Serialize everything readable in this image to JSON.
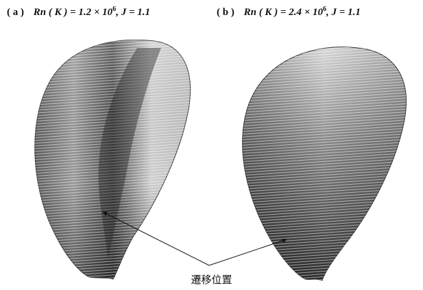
{
  "panel_a": {
    "label": "( a )",
    "formula": "Rn ( K ) = 1.2 × 10",
    "exponent": "6",
    "suffix": ",   J = 1.1"
  },
  "panel_b": {
    "label": "( b )",
    "formula": "Rn ( K ) = 2.4 × 10",
    "exponent": "6",
    "suffix": ",   J = 1.1"
  },
  "annotation": {
    "text": "遷移位置"
  },
  "colors": {
    "background": "#ffffff",
    "blade_dark": "#2a2a2a",
    "blade_light": "#d9d9d9",
    "stripe": "#ffffff"
  }
}
